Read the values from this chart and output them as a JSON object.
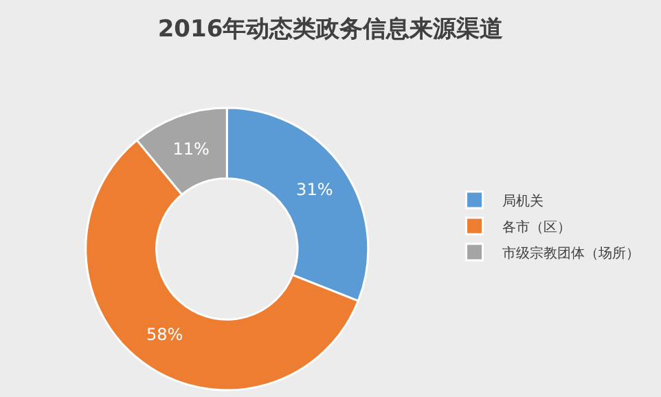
{
  "chart_data": {
    "type": "donut",
    "title": "2016年动态类政务信息来源渠道",
    "categories": [
      "局机关",
      "各市（区）",
      "市级宗教团体（场所）"
    ],
    "values": [
      31,
      58,
      11
    ],
    "colors": [
      "#5b9bd5",
      "#ed7d31",
      "#a5a5a5"
    ],
    "value_labels": [
      "31%",
      "58%",
      "11%"
    ],
    "legend": "right"
  }
}
